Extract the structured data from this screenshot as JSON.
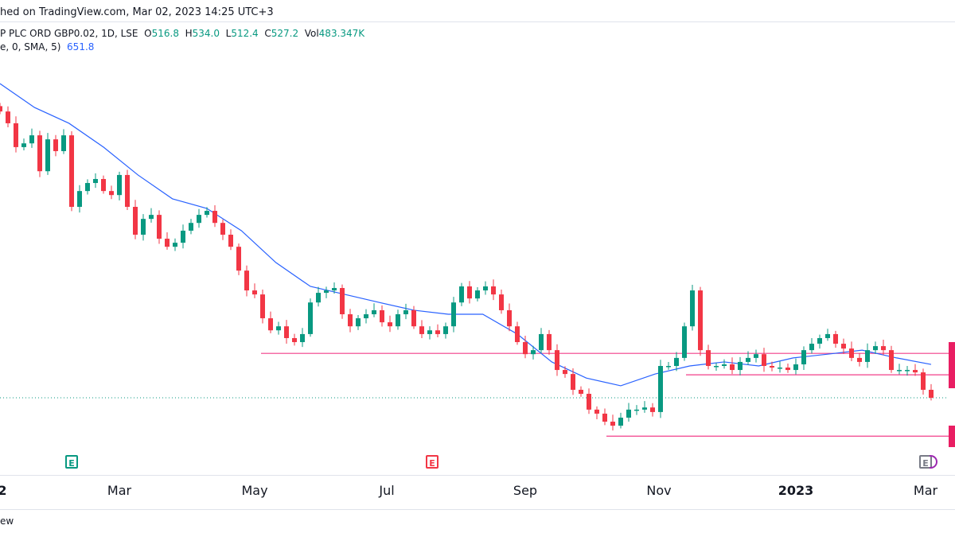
{
  "header": {
    "published": "hed on TradingView.com, Mar 02, 2023 14:25 UTC+3"
  },
  "legend": {
    "symbol": "P PLC ORD GBP0.02, 1D, LSE",
    "o_label": "O",
    "o": "516.8",
    "h_label": "H",
    "h": "534.0",
    "l_label": "L",
    "l": "512.4",
    "c_label": "C",
    "c": "527.2",
    "vol_label": "Vol",
    "vol": "483.347K",
    "sma_label": "e, 0, SMA, 5)",
    "sma": "651.8"
  },
  "footer": {
    "text": "ew"
  },
  "colors": {
    "up": "#089981",
    "down": "#f23645",
    "sma": "#2962ff",
    "hline": "#f23f8a",
    "marker": "#e91e63"
  },
  "events": [
    {
      "icon": "earnings-icon",
      "label": "E",
      "color": "#089981"
    },
    {
      "icon": "earnings-icon",
      "label": "E",
      "color": "#f23645"
    },
    {
      "icon": "earnings-icon",
      "label": "E",
      "color": "#787b86"
    }
  ],
  "chart_data": {
    "type": "candlestick",
    "interval": "1D",
    "x_ticks": [
      "2",
      "Mar",
      "May",
      "Jul",
      "Sep",
      "Nov",
      "2023",
      "Mar"
    ],
    "closes": [
      1596,
      1552,
      1463,
      1477,
      1507,
      1373,
      1492,
      1448,
      1507,
      1240,
      1299,
      1329,
      1344,
      1299,
      1284,
      1359,
      1240,
      1136,
      1195,
      1210,
      1121,
      1091,
      1106,
      1151,
      1180,
      1210,
      1225,
      1180,
      1136,
      1091,
      1002,
      928,
      913,
      824,
      779,
      794,
      750,
      735,
      765,
      883,
      919,
      928,
      937,
      839,
      794,
      824,
      839,
      854,
      809,
      794,
      839,
      854,
      794,
      765,
      779,
      765,
      794,
      883,
      943,
      898,
      928,
      943,
      913,
      854,
      794,
      735,
      690,
      705,
      765,
      705,
      631,
      616,
      557,
      542,
      483,
      468,
      438,
      423,
      453,
      483,
      483,
      491,
      474,
      646,
      646,
      676,
      794,
      928,
      705,
      646,
      646,
      652,
      631,
      661,
      676,
      690,
      646,
      640,
      640,
      631,
      652,
      705,
      729,
      750,
      765,
      729,
      711,
      676,
      661,
      705,
      720,
      705,
      631,
      631,
      631,
      622,
      557,
      527.2
    ],
    "sma": [
      1700,
      1611,
      1552,
      1463,
      1359,
      1270,
      1234,
      1151,
      1032,
      943,
      913,
      883,
      854,
      839,
      839,
      765,
      661,
      601,
      572,
      616,
      646,
      661,
      646,
      676,
      690,
      705,
      676,
      651.8
    ],
    "horizontal_lines": [
      693,
      613,
      384
    ],
    "last_close": 527.2
  }
}
